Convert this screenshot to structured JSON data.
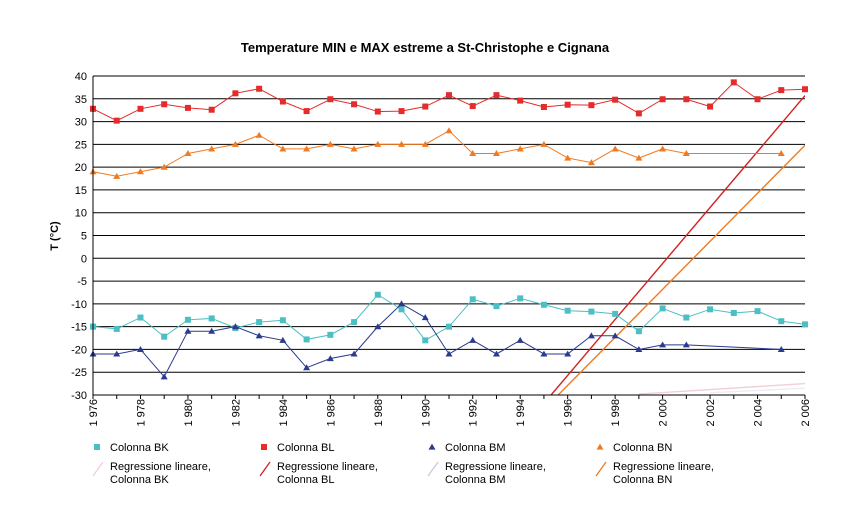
{
  "chart_data": {
    "type": "line",
    "title": "Temperature MIN  e MAX estreme a  St-Christophe   e Cignana",
    "ylabel": "T (°C)",
    "xlabel": "",
    "xlim": [
      1976,
      2006
    ],
    "ylim": [
      -30,
      40
    ],
    "ytick_step": 5,
    "grid": "horizontal",
    "legend_position": "bottom",
    "x_tick_labels": [
      {
        "x": 1976,
        "text": "1 976"
      },
      {
        "x": 1978,
        "text": "1 978"
      },
      {
        "x": 1980,
        "text": "1 980"
      },
      {
        "x": 1982,
        "text": "1 982"
      },
      {
        "x": 1984,
        "text": "1 984"
      },
      {
        "x": 1986,
        "text": "1 986"
      },
      {
        "x": 1988,
        "text": "1 988"
      },
      {
        "x": 1990,
        "text": "1 990"
      },
      {
        "x": 1992,
        "text": "1 992"
      },
      {
        "x": 1994,
        "text": "1 994"
      },
      {
        "x": 1996,
        "text": "1 996"
      },
      {
        "x": 1998,
        "text": "1 998"
      },
      {
        "x": 2000,
        "text": "2 000"
      },
      {
        "x": 2002,
        "text": "2 002"
      },
      {
        "x": 2004,
        "text": "2 004"
      },
      {
        "x": 2006,
        "text": "2 006"
      }
    ],
    "series": [
      {
        "name": "Colonna BK",
        "color": "#4bbfc4",
        "marker": "square",
        "x": [
          1976,
          1977,
          1978,
          1979,
          1980,
          1981,
          1982,
          1983,
          1984,
          1985,
          1986,
          1987,
          1988,
          1989,
          1990,
          1991,
          1992,
          1993,
          1994,
          1995,
          1996,
          1997,
          1998,
          1999,
          2000,
          2001,
          2002,
          2003,
          2004,
          2005,
          2006
        ],
        "y": [
          -15,
          -15.5,
          -13,
          -17.2,
          -13.5,
          -13.2,
          -15.3,
          -14,
          -13.6,
          -17.8,
          -16.8,
          -14,
          -8,
          -11.2,
          -18,
          -15,
          -9,
          -10.5,
          -8.8,
          -10.2,
          -11.5,
          -11.7,
          -12.2,
          -16,
          -11,
          -13,
          -11.2,
          -12,
          -11.6,
          -13.8,
          -14.5
        ]
      },
      {
        "name": "Colonna BL",
        "color": "#e52b2b",
        "marker": "square",
        "x": [
          1976,
          1977,
          1978,
          1979,
          1980,
          1981,
          1982,
          1983,
          1984,
          1985,
          1986,
          1987,
          1988,
          1989,
          1990,
          1991,
          1992,
          1993,
          1994,
          1995,
          1996,
          1997,
          1998,
          1999,
          2000,
          2001,
          2002,
          2003,
          2004,
          2005,
          2006
        ],
        "y": [
          32.8,
          30.2,
          32.8,
          33.8,
          33,
          32.6,
          36.2,
          37.2,
          34.4,
          32.3,
          34.9,
          33.8,
          32.2,
          32.3,
          33.3,
          35.8,
          33.4,
          35.8,
          34.6,
          33.2,
          33.7,
          33.6,
          34.8,
          31.8,
          34.9,
          34.9,
          33.3,
          38.6,
          34.9,
          36.9,
          37.1
        ]
      },
      {
        "name": "Colonna BM",
        "color": "#2a3a8e",
        "marker": "triangle",
        "x": [
          1976,
          1977,
          1978,
          1979,
          1980,
          1981,
          1982,
          1983,
          1984,
          1985,
          1986,
          1987,
          1988,
          1989,
          1990,
          1991,
          1992,
          1993,
          1994,
          1995,
          1996,
          1997,
          1998,
          1999,
          2000,
          2001,
          2005
        ],
        "y": [
          -21,
          -21,
          -20,
          -26,
          -16,
          -16,
          -15,
          -17,
          -18,
          -24,
          -22,
          -21,
          -15,
          -10,
          -13,
          -21,
          -18,
          -21,
          -18,
          -21,
          -21,
          -17,
          -17,
          -20,
          -19,
          -19,
          -20
        ]
      },
      {
        "name": "Colonna BN",
        "color": "#f07a22",
        "marker": "triangle",
        "x": [
          1976,
          1977,
          1978,
          1979,
          1980,
          1981,
          1982,
          1983,
          1984,
          1985,
          1986,
          1987,
          1988,
          1989,
          1990,
          1991,
          1992,
          1993,
          1994,
          1995,
          1996,
          1997,
          1998,
          1999,
          2000,
          2001,
          2005
        ],
        "y": [
          19,
          18,
          19,
          20,
          23,
          24,
          25,
          27,
          24,
          24,
          25,
          24,
          25,
          25,
          25,
          28,
          23,
          23,
          24,
          25,
          22,
          21,
          24,
          22,
          24,
          23,
          23
        ]
      }
    ],
    "trendlines": [
      {
        "name": "Regressione lineare, Colonna BK",
        "color": "#f2cfd8",
        "x": [
          1999,
          2006
        ],
        "y": [
          -29.8,
          -27.5
        ]
      },
      {
        "name": "Regressione lineare, Colonna BL",
        "color": "#d42020",
        "x": [
          1995.3,
          2006
        ],
        "y": [
          -30,
          35.7
        ]
      },
      {
        "name": "Regressione lineare, Colonna BM",
        "color": "#ececf6",
        "x": [
          2002,
          2006
        ],
        "y": [
          -29.5,
          -28.5
        ]
      },
      {
        "name": "Regressione lineare, Colonna BN",
        "color": "#f07a22",
        "x": [
          1995.6,
          2006
        ],
        "y": [
          -30,
          24.8
        ]
      }
    ],
    "legend": [
      {
        "name": "Colonna BK",
        "type": "marker",
        "marker": "square",
        "color": "#4bbfc4"
      },
      {
        "name": "Colonna BL",
        "type": "marker",
        "marker": "square",
        "color": "#e52b2b"
      },
      {
        "name": "Colonna BM",
        "type": "marker",
        "marker": "triangle",
        "color": "#2a3a8e"
      },
      {
        "name": "Colonna BN",
        "type": "marker",
        "marker": "triangle",
        "color": "#f07a22"
      },
      {
        "name": "Regressione lineare, Colonna BK",
        "type": "line",
        "color": "#f2cfd8"
      },
      {
        "name": "Regressione lineare, Colonna BL",
        "type": "line",
        "color": "#d42020"
      },
      {
        "name": "Regressione lineare, Colonna BM",
        "type": "line",
        "color": "#c8c8e0"
      },
      {
        "name": "Regressione lineare, Colonna BN",
        "type": "line",
        "color": "#f07a22"
      }
    ]
  }
}
